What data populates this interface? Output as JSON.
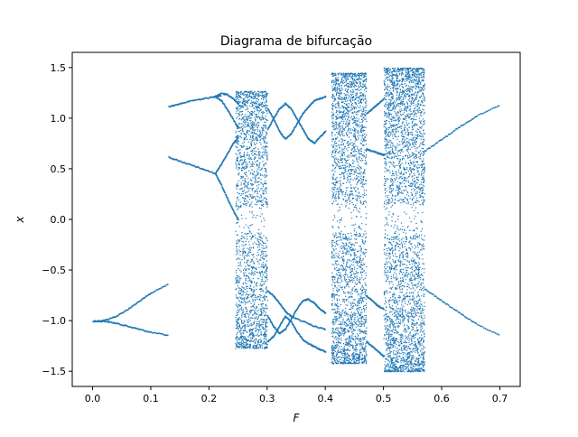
{
  "chart_data": {
    "type": "scatter",
    "title": "Diagrama de bifurcação",
    "xlabel": "F",
    "ylabel": "x",
    "xlim": [
      -0.035,
      0.735
    ],
    "ylim": [
      -1.65,
      1.65
    ],
    "xticks": [
      0.0,
      0.1,
      0.2,
      0.3,
      0.4,
      0.5,
      0.6,
      0.7
    ],
    "xtick_labels": [
      "0.0",
      "0.1",
      "0.2",
      "0.3",
      "0.4",
      "0.5",
      "0.6",
      "0.7"
    ],
    "yticks": [
      -1.5,
      -1.0,
      -0.5,
      0.0,
      0.5,
      1.0,
      1.5
    ],
    "ytick_labels": [
      "−1.5",
      "−1.0",
      "−0.5",
      "0.0",
      "0.5",
      "1.0",
      "1.5"
    ],
    "grid": false,
    "marker_color": "#1f77b4",
    "periodic_branches": [
      {
        "name": "",
        "x": [
          0.0,
          0.02,
          0.04,
          0.06,
          0.08,
          0.1,
          0.13
        ],
        "y": [
          -1.0,
          -0.99,
          -0.95,
          -0.88,
          -0.8,
          -0.72,
          -0.63
        ]
      },
      {
        "name": "",
        "x": [
          0.0,
          0.02,
          0.04,
          0.06,
          0.08,
          0.1,
          0.13
        ],
        "y": [
          -1.0,
          -1.0,
          -1.02,
          -1.05,
          -1.08,
          -1.11,
          -1.14
        ]
      },
      {
        "name": "",
        "x": [
          0.13,
          0.15,
          0.17,
          0.19,
          0.21,
          0.22
        ],
        "y": [
          1.12,
          1.15,
          1.18,
          1.2,
          1.22,
          1.23
        ]
      },
      {
        "name": "",
        "x": [
          0.13,
          0.15,
          0.17,
          0.19,
          0.21
        ],
        "y": [
          0.62,
          0.58,
          0.54,
          0.5,
          0.46
        ]
      },
      {
        "name": "",
        "x": [
          0.21,
          0.22,
          0.23,
          0.24,
          0.25
        ],
        "y": [
          1.22,
          1.18,
          1.1,
          1.0,
          0.9
        ]
      },
      {
        "name": "",
        "x": [
          0.21,
          0.22,
          0.23,
          0.24,
          0.25
        ],
        "y": [
          1.22,
          1.25,
          1.24,
          1.2,
          1.15
        ]
      },
      {
        "name": "",
        "x": [
          0.21,
          0.22,
          0.23,
          0.24,
          0.25
        ],
        "y": [
          0.46,
          0.55,
          0.65,
          0.75,
          0.82
        ]
      },
      {
        "name": "",
        "x": [
          0.21,
          0.22,
          0.23,
          0.24,
          0.25
        ],
        "y": [
          0.46,
          0.35,
          0.22,
          0.1,
          0.0
        ]
      },
      {
        "name": "",
        "x": [
          0.3,
          0.31,
          0.32,
          0.33,
          0.34,
          0.35,
          0.36,
          0.37,
          0.38,
          0.39,
          0.4
        ],
        "y": [
          1.1,
          1.0,
          0.88,
          0.8,
          0.85,
          0.95,
          1.05,
          1.12,
          1.18,
          1.2,
          1.22
        ]
      },
      {
        "name": "",
        "x": [
          0.3,
          0.31,
          0.32,
          0.33,
          0.34,
          0.35,
          0.36,
          0.37,
          0.38,
          0.39,
          0.4
        ],
        "y": [
          0.9,
          1.0,
          1.1,
          1.15,
          1.1,
          1.0,
          0.9,
          0.8,
          0.76,
          0.82,
          0.88
        ]
      },
      {
        "name": "",
        "x": [
          0.3,
          0.31,
          0.32,
          0.33,
          0.34,
          0.35,
          0.36,
          0.37,
          0.38,
          0.39,
          0.4
        ],
        "y": [
          -0.95,
          -1.05,
          -1.12,
          -1.08,
          -0.98,
          -0.88,
          -0.8,
          -0.78,
          -0.82,
          -0.88,
          -0.92
        ]
      },
      {
        "name": "",
        "x": [
          0.3,
          0.31,
          0.32,
          0.33,
          0.34,
          0.35,
          0.36,
          0.37,
          0.38,
          0.39,
          0.4
        ],
        "y": [
          -1.2,
          -1.15,
          -1.05,
          -0.95,
          -1.0,
          -1.1,
          -1.18,
          -1.22,
          -1.25,
          -1.28,
          -1.3
        ]
      },
      {
        "name": "",
        "x": [
          0.3,
          0.31,
          0.32,
          0.33,
          0.34,
          0.36,
          0.38,
          0.4
        ],
        "y": [
          -0.7,
          -0.75,
          -0.82,
          -0.9,
          -0.95,
          -1.0,
          -1.05,
          -1.08
        ]
      },
      {
        "name": "",
        "x": [
          0.47,
          0.48,
          0.49,
          0.5
        ],
        "y": [
          1.05,
          1.1,
          1.15,
          1.2
        ]
      },
      {
        "name": "",
        "x": [
          0.47,
          0.48,
          0.49,
          0.5
        ],
        "y": [
          0.7,
          0.68,
          0.66,
          0.64
        ]
      },
      {
        "name": "",
        "x": [
          0.47,
          0.48,
          0.49,
          0.5
        ],
        "y": [
          -0.75,
          -0.8,
          -0.85,
          -0.88
        ]
      },
      {
        "name": "",
        "x": [
          0.47,
          0.48,
          0.49,
          0.5
        ],
        "y": [
          -1.2,
          -1.25,
          -1.3,
          -1.35
        ]
      },
      {
        "name": "",
        "x": [
          0.57,
          0.6,
          0.63,
          0.66,
          0.7
        ],
        "y": [
          0.68,
          0.8,
          0.92,
          1.03,
          1.14
        ]
      },
      {
        "name": "",
        "x": [
          0.57,
          0.6,
          0.63,
          0.66,
          0.7
        ],
        "y": [
          -0.68,
          -0.8,
          -0.92,
          -1.03,
          -1.14
        ]
      }
    ],
    "chaotic_regions": [
      {
        "x_range": [
          0.245,
          0.3
        ],
        "y_range": [
          -1.27,
          1.27
        ],
        "density": 2200
      },
      {
        "x_range": [
          0.41,
          0.47
        ],
        "y_range": [
          -1.42,
          1.45
        ],
        "density": 2800
      },
      {
        "x_range": [
          0.5,
          0.57
        ],
        "y_range": [
          -1.5,
          1.5
        ],
        "density": 3400
      }
    ]
  }
}
